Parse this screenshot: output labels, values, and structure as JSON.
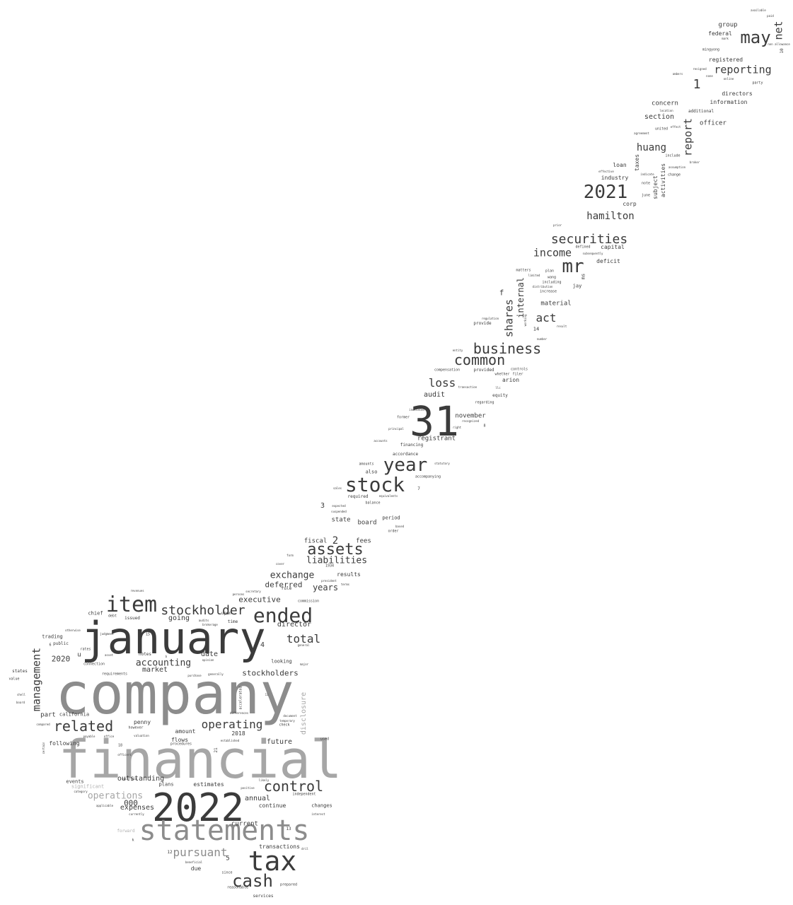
{
  "colors": {
    "background": "#ffffff",
    "dark": "#3b3b3b",
    "mid": "#8c8c8c",
    "light": "#b0b0b0"
  },
  "words": [
    {
      "text": "company"
    },
    {
      "text": "financial"
    },
    {
      "text": "january"
    },
    {
      "text": "2022"
    },
    {
      "text": "statements"
    },
    {
      "text": "31"
    },
    {
      "text": "tax"
    },
    {
      "text": "stock"
    },
    {
      "text": "year"
    },
    {
      "text": "item"
    },
    {
      "text": "ended"
    },
    {
      "text": "2021"
    },
    {
      "text": "cash"
    },
    {
      "text": "mr"
    },
    {
      "text": "may"
    },
    {
      "text": "related"
    },
    {
      "text": "control"
    },
    {
      "text": "business"
    },
    {
      "text": "assets"
    },
    {
      "text": "common"
    },
    {
      "text": "stockholder"
    },
    {
      "text": "securities"
    },
    {
      "text": "pursuant"
    },
    {
      "text": "operating"
    },
    {
      "text": "management"
    },
    {
      "text": "total"
    },
    {
      "text": "reporting"
    },
    {
      "text": "hamilton"
    },
    {
      "text": "income"
    },
    {
      "text": "shares"
    },
    {
      "text": "loss"
    },
    {
      "text": "act"
    },
    {
      "text": "liabilities"
    },
    {
      "text": "report"
    },
    {
      "text": "huang"
    },
    {
      "text": "net"
    },
    {
      "text": "operations"
    },
    {
      "text": "accounting"
    },
    {
      "text": "exchange"
    },
    {
      "text": "1"
    },
    {
      "text": "years"
    },
    {
      "text": "internal"
    },
    {
      "text": "2"
    },
    {
      "text": "deferred"
    },
    {
      "text": "executive"
    },
    {
      "text": "stockholders"
    },
    {
      "text": "2020"
    },
    {
      "text": "outstanding"
    },
    {
      "text": "expenses"
    },
    {
      "text": "000"
    },
    {
      "text": "annual"
    },
    {
      "text": "disclosure"
    },
    {
      "text": "director"
    },
    {
      "text": "future"
    },
    {
      "text": "market"
    },
    {
      "text": "date"
    },
    {
      "text": "going"
    },
    {
      "text": "audit"
    },
    {
      "text": "registrant"
    },
    {
      "text": "november"
    },
    {
      "text": "section"
    },
    {
      "text": "concern"
    },
    {
      "text": "officer"
    },
    {
      "text": "directors"
    },
    {
      "text": "information"
    },
    {
      "text": "group"
    },
    {
      "text": "federal"
    },
    {
      "text": "registered"
    },
    {
      "text": "material"
    },
    {
      "text": "fees"
    },
    {
      "text": "fiscal"
    },
    {
      "text": "state"
    },
    {
      "text": "board"
    },
    {
      "text": "current"
    },
    {
      "text": "transactions"
    },
    {
      "text": "estimates"
    },
    {
      "text": "flows"
    },
    {
      "text": "amount"
    },
    {
      "text": "penny"
    },
    {
      "text": "part"
    },
    {
      "text": "california"
    },
    {
      "text": "following"
    },
    {
      "text": "continue"
    },
    {
      "text": "changes"
    },
    {
      "text": "due"
    },
    {
      "text": "results"
    },
    {
      "text": "period"
    },
    {
      "text": "loan"
    },
    {
      "text": "industry"
    },
    {
      "text": "corp"
    },
    {
      "text": "capital"
    },
    {
      "text": "deficit"
    },
    {
      "text": "taxes"
    },
    {
      "text": "subject"
    },
    {
      "text": "activities"
    },
    {
      "text": "f"
    },
    {
      "text": "also"
    },
    {
      "text": "3"
    },
    {
      "text": "4"
    },
    {
      "text": "5"
    },
    {
      "text": "2018"
    },
    {
      "text": "events"
    },
    {
      "text": "significant"
    },
    {
      "text": "plans"
    },
    {
      "text": "u"
    },
    {
      "text": "chief"
    },
    {
      "text": "trading"
    },
    {
      "text": "public"
    },
    {
      "text": "issued"
    },
    {
      "text": "upon"
    },
    {
      "text": "time"
    },
    {
      "text": "looking"
    },
    {
      "text": "arion"
    },
    {
      "text": "equity"
    },
    {
      "text": "financing"
    },
    {
      "text": "accordance"
    },
    {
      "text": "amounts"
    },
    {
      "text": "required"
    },
    {
      "text": "ms"
    },
    {
      "text": "jay"
    },
    {
      "text": "additional"
    },
    {
      "text": "united"
    },
    {
      "text": "mingyong"
    },
    {
      "text": "forward"
    },
    {
      "text": "prepared"
    },
    {
      "text": "services"
    },
    {
      "text": "since"
    },
    {
      "text": "notes"
    },
    {
      "text": "rates"
    },
    {
      "text": "procedures"
    },
    {
      "text": "former"
    },
    {
      "text": "provide"
    },
    {
      "text": "provided"
    },
    {
      "text": "note"
    },
    {
      "text": "june"
    },
    {
      "text": "change"
    },
    {
      "text": "include"
    },
    {
      "text": "14"
    },
    {
      "text": "7"
    },
    {
      "text": "12"
    },
    {
      "text": "13"
    },
    {
      "text": "21"
    },
    {
      "text": "10"
    },
    {
      "text": "18"
    },
    {
      "text": "party"
    },
    {
      "text": "increase"
    },
    {
      "text": "including"
    },
    {
      "text": "plan"
    },
    {
      "text": "matters"
    },
    {
      "text": "wang"
    },
    {
      "text": "regarding"
    },
    {
      "text": "controls"
    },
    {
      "text": "whether"
    },
    {
      "text": "filer"
    },
    {
      "text": "commission"
    },
    {
      "text": "compensation"
    },
    {
      "text": "check"
    },
    {
      "text": "used"
    },
    {
      "text": "independent"
    },
    {
      "text": "payable"
    },
    {
      "text": "accompanying"
    },
    {
      "text": "order"
    },
    {
      "text": "balance"
    },
    {
      "text": "expected"
    },
    {
      "text": "requirements"
    },
    {
      "text": "connection"
    },
    {
      "text": "however"
    },
    {
      "text": "valuation"
    },
    {
      "text": "audits"
    },
    {
      "text": "judgment"
    },
    {
      "text": "otherwise"
    },
    {
      "text": "states"
    },
    {
      "text": "value"
    },
    {
      "text": "general"
    },
    {
      "text": "major"
    },
    {
      "text": "generally"
    },
    {
      "text": "secretary"
    },
    {
      "text": "persons"
    },
    {
      "text": "president"
    },
    {
      "text": "terms"
    },
    {
      "text": "form"
    },
    {
      "text": "cover"
    },
    {
      "text": "1934"
    },
    {
      "text": "sales"
    },
    {
      "text": "principal"
    },
    {
      "text": "accounts"
    },
    {
      "text": "statutory"
    },
    {
      "text": "right"
    },
    {
      "text": "recognized"
    },
    {
      "text": "defined"
    },
    {
      "text": "subsequently"
    },
    {
      "text": "prior"
    },
    {
      "text": "limited"
    },
    {
      "text": "distribution"
    },
    {
      "text": "working"
    },
    {
      "text": "result"
    },
    {
      "text": "regulation"
    },
    {
      "text": "number"
    },
    {
      "text": "entity"
    },
    {
      "text": "transaction"
    },
    {
      "text": "llc"
    },
    {
      "text": "indicated"
    },
    {
      "text": "agreement"
    },
    {
      "text": "effective"
    },
    {
      "text": "indicate"
    },
    {
      "text": "location"
    },
    {
      "text": "effect"
    },
    {
      "text": "assumption"
    },
    {
      "text": "broker"
    },
    {
      "text": "available"
    },
    {
      "text": "paid"
    },
    {
      "text": "non"
    },
    {
      "text": "allowance"
    },
    {
      "text": "mark"
    },
    {
      "text": "none"
    },
    {
      "text": "online"
    },
    {
      "text": "resigned"
    },
    {
      "text": "ambers"
    },
    {
      "text": "rule"
    },
    {
      "text": "differences"
    },
    {
      "text": "accelerated"
    },
    {
      "text": "established"
    },
    {
      "text": "likely"
    },
    {
      "text": "purchase"
    },
    {
      "text": "opinion"
    },
    {
      "text": "positive"
    },
    {
      "text": "document"
    },
    {
      "text": "uncertain"
    },
    {
      "text": "currently"
    },
    {
      "text": "applicable"
    },
    {
      "text": "office"
    },
    {
      "text": "debt"
    },
    {
      "text": "asset"
    },
    {
      "text": "brokerage"
    },
    {
      "text": "category"
    },
    {
      "text": "reasonable"
    },
    {
      "text": "beneficial"
    },
    {
      "text": "equivalents"
    },
    {
      "text": "suspended"
    },
    {
      "text": "based"
    },
    {
      "text": "k"
    },
    {
      "text": "b"
    },
    {
      "text": "6"
    },
    {
      "text": "8"
    },
    {
      "text": "11"
    },
    {
      "text": "15"
    },
    {
      "text": "dril"
    },
    {
      "text": "interest"
    },
    {
      "text": "temporary"
    },
    {
      "text": "revenues"
    },
    {
      "text": "compared"
    },
    {
      "text": "certain"
    },
    {
      "text": "officers"
    },
    {
      "text": "shell"
    },
    {
      "text": "board"
    }
  ]
}
